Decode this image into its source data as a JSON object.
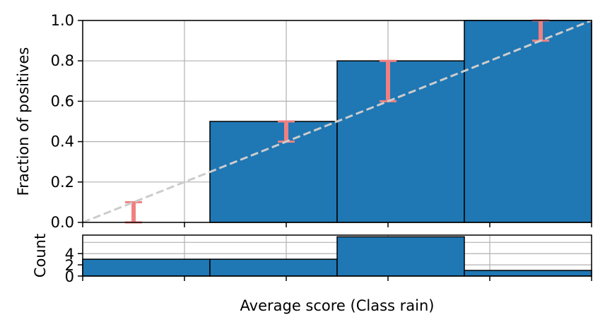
{
  "chart_data": [
    {
      "type": "bar",
      "bins": [
        [
          0.0,
          0.25
        ],
        [
          0.25,
          0.5
        ],
        [
          0.5,
          0.75
        ],
        [
          0.75,
          1.0
        ]
      ],
      "values": [
        0.0,
        0.5,
        0.8,
        1.0
      ],
      "error_bars": [
        {
          "x": 0.1,
          "low": 0.0,
          "high": 0.1
        },
        {
          "x": 0.4,
          "low": 0.4,
          "high": 0.5
        },
        {
          "x": 0.6,
          "low": 0.6,
          "high": 0.8
        },
        {
          "x": 0.9,
          "low": 0.9,
          "high": 1.0
        }
      ],
      "reference_line": {
        "from": [
          0,
          0
        ],
        "to": [
          1,
          1
        ],
        "style": "dashed",
        "color": "#cccccc"
      },
      "ylabel": "Fraction of positives",
      "xlim": [
        0,
        1
      ],
      "ylim": [
        0,
        1
      ],
      "yticks": [
        "0.0",
        "0.2",
        "0.4",
        "0.6",
        "0.8",
        "1.0"
      ],
      "xtick_positions": [
        0,
        0.2,
        0.4,
        0.6,
        0.8,
        1.0
      ],
      "grid": true,
      "bar_color": "#1f77b4",
      "error_color": "#f08080"
    },
    {
      "type": "bar",
      "bins": [
        [
          0.0,
          0.25
        ],
        [
          0.25,
          0.5
        ],
        [
          0.5,
          0.75
        ],
        [
          0.75,
          1.0
        ]
      ],
      "values": [
        3,
        3,
        7,
        1
      ],
      "ylabel": "Count",
      "xlabel": "Average score (Class rain)",
      "xlim": [
        0,
        1
      ],
      "ylim": [
        0,
        7.3
      ],
      "yticks": [
        "0",
        "2",
        "4"
      ],
      "ytick_values": [
        0,
        2,
        4
      ],
      "grid_y_values": [
        2,
        4,
        6
      ],
      "xtick_positions": [
        0,
        0.2,
        0.4,
        0.6,
        0.8,
        1.0
      ],
      "grid": true,
      "bar_color": "#1f77b4"
    }
  ]
}
